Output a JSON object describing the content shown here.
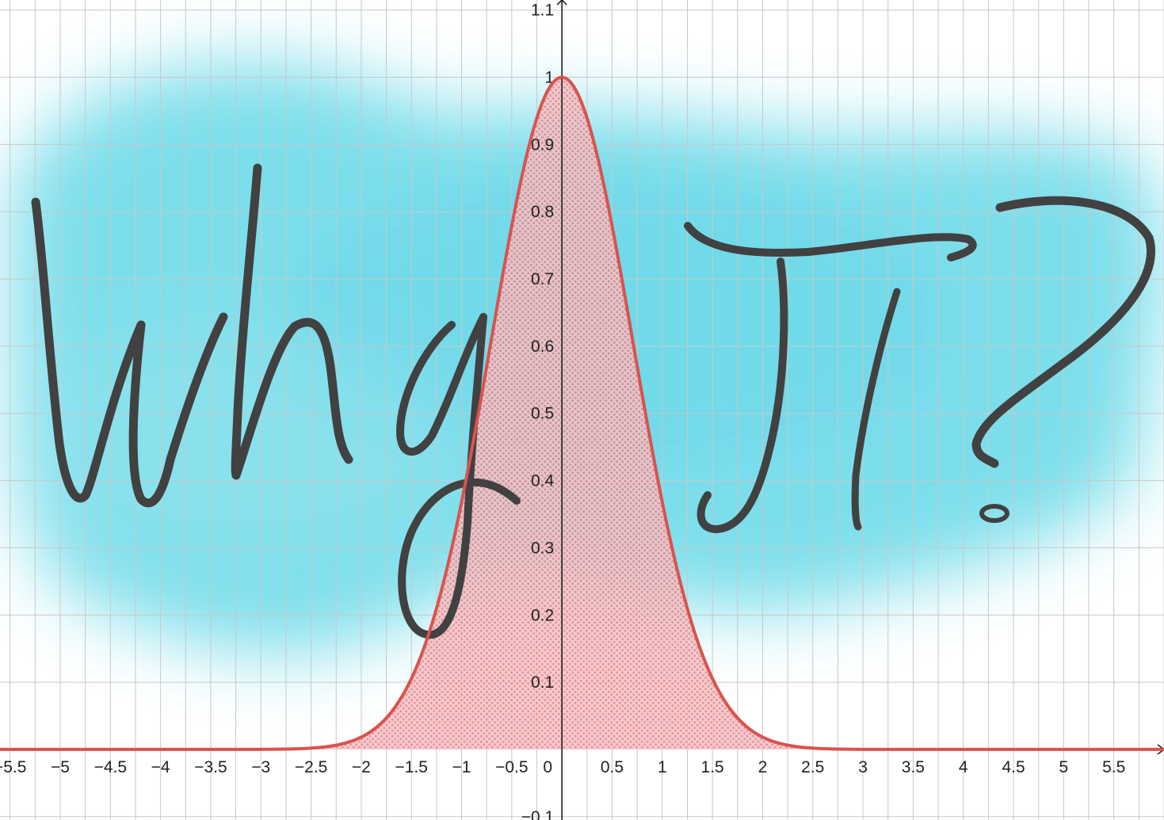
{
  "chart_data": {
    "type": "area",
    "function": "y = e^(-x^2)",
    "title": "",
    "xlabel": "",
    "ylabel": "",
    "xlim": [
      -5.6,
      6.0
    ],
    "ylim": [
      -0.105,
      1.115
    ],
    "x_ticks": [
      {
        "value": -5.5,
        "label": "−5.5"
      },
      {
        "value": -5,
        "label": "−5"
      },
      {
        "value": -4.5,
        "label": "−4.5"
      },
      {
        "value": -4,
        "label": "−4"
      },
      {
        "value": -3.5,
        "label": "−3.5"
      },
      {
        "value": -3,
        "label": "−3"
      },
      {
        "value": -2.5,
        "label": "−2.5"
      },
      {
        "value": -2,
        "label": "−2"
      },
      {
        "value": -1.5,
        "label": "−1.5"
      },
      {
        "value": -1,
        "label": "−1"
      },
      {
        "value": -0.5,
        "label": "−0.5"
      },
      {
        "value": 0,
        "label": "0"
      },
      {
        "value": 0.5,
        "label": "0.5"
      },
      {
        "value": 1,
        "label": "1"
      },
      {
        "value": 1.5,
        "label": "1.5"
      },
      {
        "value": 2,
        "label": "2"
      },
      {
        "value": 2.5,
        "label": "2.5"
      },
      {
        "value": 3,
        "label": "3"
      },
      {
        "value": 3.5,
        "label": "3.5"
      },
      {
        "value": 4,
        "label": "4"
      },
      {
        "value": 4.5,
        "label": "4.5"
      },
      {
        "value": 5,
        "label": "5"
      },
      {
        "value": 5.5,
        "label": "5.5"
      }
    ],
    "y_ticks": [
      {
        "value": -0.1,
        "label": "−0.1"
      },
      {
        "value": 0.1,
        "label": "0.1"
      },
      {
        "value": 0.2,
        "label": "0.2"
      },
      {
        "value": 0.3,
        "label": "0.3"
      },
      {
        "value": 0.4,
        "label": "0.4"
      },
      {
        "value": 0.5,
        "label": "0.5"
      },
      {
        "value": 0.6,
        "label": "0.6"
      },
      {
        "value": 0.7,
        "label": "0.7"
      },
      {
        "value": 0.8,
        "label": "0.8"
      },
      {
        "value": 0.9,
        "label": "0.9"
      },
      {
        "value": 1,
        "label": "1"
      },
      {
        "value": 1.1,
        "label": "1.1"
      }
    ],
    "grid": true,
    "grid_minor_step": 0.25,
    "series": [
      {
        "x": [
          -5.5,
          -5,
          -4.5,
          -4,
          -3.5,
          -3,
          -2.5,
          -2,
          -1.5,
          -1,
          -0.5,
          0,
          0.5,
          1,
          1.5,
          2,
          2.5,
          3,
          3.5,
          4,
          4.5,
          5,
          5.5
        ],
        "values": [
          0,
          0,
          0,
          0,
          0,
          0.0001,
          0.0019,
          0.0183,
          0.1054,
          0.3679,
          0.7788,
          1,
          0.7788,
          0.3679,
          0.1054,
          0.0183,
          0.0019,
          0.0001,
          0,
          0,
          0,
          0,
          0
        ],
        "color": "#d9534f",
        "fill": "hatched"
      }
    ],
    "colors": {
      "curve": "#d9534f",
      "watercolor": "#5ed6e8",
      "handwriting": "#414141",
      "grid": "#c8c8c8"
    }
  },
  "overlay": {
    "handwritten_text": "why π?",
    "style": "handwritten calligraphy over watercolor wash"
  }
}
